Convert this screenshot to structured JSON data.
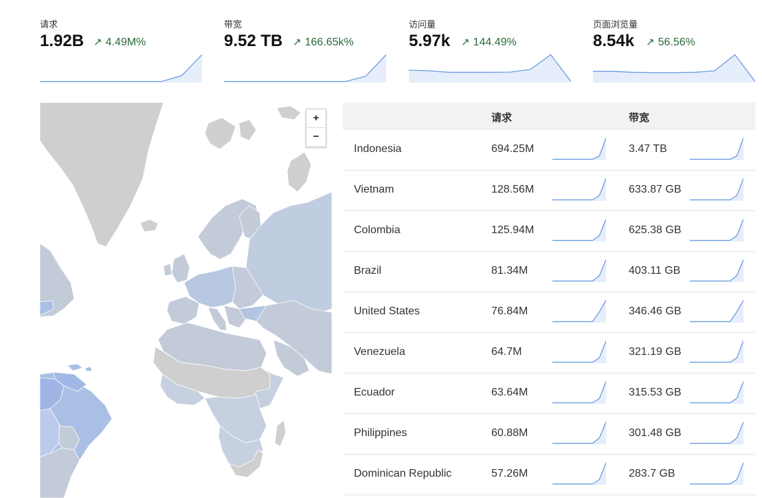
{
  "colors": {
    "line": "#6a9de0",
    "fill": "#e6eefb",
    "up": "#2a6a3a"
  },
  "stats": [
    {
      "label": "请求",
      "value": "1.92B",
      "delta": "4.49M%",
      "arrow": "↗",
      "trend": [
        0,
        0,
        0,
        0,
        0,
        0,
        0,
        0.22,
        1
      ]
    },
    {
      "label": "带宽",
      "value": "9.52 TB",
      "delta": "166.65k%",
      "arrow": "↗",
      "trend": [
        0,
        0,
        0,
        0,
        0,
        0,
        0,
        0.2,
        1
      ]
    },
    {
      "label": "访问量",
      "value": "5.97k",
      "delta": "144.49%",
      "arrow": "↗",
      "trend": [
        0.42,
        0.4,
        0.34,
        0.34,
        0.34,
        0.35,
        0.45,
        1,
        0
      ]
    },
    {
      "label": "页面浏览量",
      "value": "8.54k",
      "delta": "56.56%",
      "arrow": "↗",
      "trend": [
        0.38,
        0.38,
        0.34,
        0.33,
        0.33,
        0.34,
        0.4,
        1,
        0
      ]
    }
  ],
  "map": {
    "zoom_in": "+",
    "zoom_out": "−"
  },
  "table": {
    "headers": {
      "country": "",
      "requests": "请求",
      "bandwidth": "带宽"
    },
    "rows": [
      {
        "country": "Indonesia",
        "requests": "694.25M",
        "bandwidth": "3.47 TB",
        "req_trend": [
          0,
          0,
          0,
          0,
          0,
          0,
          0,
          0.15,
          1
        ],
        "bw_trend": [
          0,
          0,
          0,
          0,
          0,
          0,
          0,
          0.15,
          1
        ]
      },
      {
        "country": "Vietnam",
        "requests": "128.56M",
        "bandwidth": "633.87 GB",
        "req_trend": [
          0,
          0,
          0,
          0,
          0,
          0,
          0,
          0.2,
          1
        ],
        "bw_trend": [
          0,
          0,
          0,
          0,
          0,
          0,
          0,
          0.2,
          1
        ]
      },
      {
        "country": "Colombia",
        "requests": "125.94M",
        "bandwidth": "625.38 GB",
        "req_trend": [
          0,
          0,
          0,
          0,
          0,
          0,
          0,
          0.22,
          1
        ],
        "bw_trend": [
          0,
          0,
          0,
          0,
          0,
          0,
          0,
          0.22,
          1
        ]
      },
      {
        "country": "Brazil",
        "requests": "81.34M",
        "bandwidth": "403.11 GB",
        "req_trend": [
          0,
          0,
          0,
          0,
          0,
          0,
          0,
          0.25,
          1
        ],
        "bw_trend": [
          0,
          0,
          0,
          0,
          0,
          0,
          0,
          0.25,
          1
        ]
      },
      {
        "country": "United States",
        "requests": "76.84M",
        "bandwidth": "346.46 GB",
        "req_trend": [
          0,
          0,
          0,
          0,
          0,
          0,
          0,
          0.45,
          1
        ],
        "bw_trend": [
          0,
          0,
          0,
          0,
          0,
          0,
          0,
          0.45,
          1
        ]
      },
      {
        "country": "Venezuela",
        "requests": "64.7M",
        "bandwidth": "321.19 GB",
        "req_trend": [
          0,
          0,
          0,
          0,
          0,
          0,
          0,
          0.2,
          1
        ],
        "bw_trend": [
          0,
          0,
          0,
          0,
          0,
          0,
          0,
          0.2,
          1
        ]
      },
      {
        "country": "Ecuador",
        "requests": "63.64M",
        "bandwidth": "315.53 GB",
        "req_trend": [
          0,
          0,
          0,
          0,
          0,
          0,
          0,
          0.2,
          1
        ],
        "bw_trend": [
          0,
          0,
          0,
          0,
          0,
          0,
          0,
          0.2,
          1
        ]
      },
      {
        "country": "Philippines",
        "requests": "60.88M",
        "bandwidth": "301.48 GB",
        "req_trend": [
          0,
          0,
          0,
          0,
          0,
          0,
          0,
          0.25,
          1
        ],
        "bw_trend": [
          0,
          0,
          0,
          0,
          0,
          0,
          0,
          0.25,
          1
        ]
      },
      {
        "country": "Dominican Republic",
        "requests": "57.26M",
        "bandwidth": "283.7 GB",
        "req_trend": [
          0,
          0,
          0,
          0,
          0,
          0,
          0,
          0.2,
          1
        ],
        "bw_trend": [
          0,
          0,
          0,
          0,
          0,
          0,
          0,
          0.2,
          1
        ]
      }
    ]
  }
}
